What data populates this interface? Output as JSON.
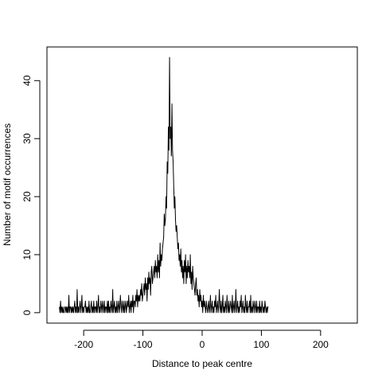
{
  "chart_data": {
    "type": "line",
    "title": "",
    "xlabel": "Distance to peak centre",
    "ylabel": "Number of motif occurrences",
    "xlim": [
      -262,
      262
    ],
    "ylim": [
      -1.8,
      45.8
    ],
    "xticks": [
      -200,
      -100,
      0,
      100,
      200
    ],
    "yticks": [
      0,
      10,
      20,
      30,
      40
    ],
    "xtick_labels": [
      "-200",
      "-100",
      "0",
      "100",
      "200"
    ],
    "ytick_labels": [
      "0",
      "10",
      "20",
      "30",
      "40"
    ],
    "grid": false,
    "legend": "none",
    "colors": {
      "line": "#000000",
      "axis": "#000000",
      "background": "#ffffff"
    },
    "series": [
      {
        "x_start": -241,
        "x_step": 1,
        "values": [
          1,
          0,
          2,
          0,
          1,
          0,
          1,
          0,
          0,
          1,
          1,
          0,
          1,
          0,
          1,
          0,
          3,
          0,
          1,
          1,
          0,
          1,
          0,
          1,
          0,
          1,
          2,
          0,
          1,
          0,
          4,
          0,
          1,
          0,
          1,
          2,
          0,
          1,
          3,
          0,
          1,
          0,
          1,
          1,
          2,
          0,
          1,
          0,
          1,
          0,
          2,
          0,
          0,
          1,
          2,
          0,
          1,
          0,
          2,
          0,
          1,
          1,
          0,
          2,
          0,
          1,
          3,
          0,
          1,
          0,
          2,
          1,
          0,
          2,
          1,
          0,
          2,
          0,
          1,
          1,
          0,
          2,
          0,
          2,
          0,
          1,
          0,
          2,
          1,
          0,
          4,
          0,
          1,
          2,
          0,
          1,
          0,
          2,
          0,
          1,
          2,
          0,
          1,
          3,
          1,
          0,
          2,
          1,
          0,
          2,
          0,
          1,
          2,
          0,
          1,
          2,
          1,
          3,
          0,
          1,
          2,
          0,
          2,
          1,
          3,
          0,
          2,
          2,
          1,
          3,
          2,
          4,
          1,
          3,
          2,
          3,
          2,
          4,
          3,
          5,
          2,
          3,
          4,
          5,
          3,
          6,
          4,
          5,
          2,
          6,
          4,
          7,
          5,
          6,
          3,
          7,
          8,
          5,
          6,
          7,
          8,
          6,
          9,
          7,
          8,
          6,
          10,
          7,
          9,
          6,
          12,
          8,
          10,
          9,
          11,
          12,
          13,
          17,
          15,
          16,
          20,
          18,
          26,
          24,
          32,
          28,
          44,
          30,
          32,
          27,
          36,
          28,
          26,
          22,
          18,
          20,
          16,
          14,
          15,
          13,
          11,
          12,
          9,
          10,
          8,
          11,
          7,
          9,
          6,
          8,
          5,
          9,
          7,
          10,
          5,
          8,
          6,
          9,
          7,
          8,
          6,
          10,
          5,
          7,
          4,
          8,
          6,
          5,
          4,
          3,
          5,
          6,
          3,
          4,
          2,
          3,
          1,
          4,
          2,
          3,
          1,
          2,
          0,
          3,
          1,
          2,
          1,
          0,
          2,
          1,
          0,
          1,
          2,
          0,
          1,
          3,
          0,
          1,
          2,
          0,
          1,
          0,
          2,
          1,
          3,
          0,
          1,
          2,
          0,
          1,
          4,
          1,
          0,
          2,
          0,
          1,
          3,
          0,
          1,
          0,
          2,
          1,
          0,
          3,
          1,
          0,
          2,
          0,
          1,
          2,
          1,
          0,
          3,
          0,
          1,
          2,
          0,
          1,
          4,
          0,
          1,
          2,
          0,
          1,
          0,
          2,
          1,
          3,
          0,
          1,
          2,
          0,
          1,
          0,
          3,
          1,
          0,
          2,
          0,
          1,
          1,
          2,
          0,
          3,
          0,
          1,
          0,
          2,
          1,
          0,
          2,
          1,
          0,
          2,
          0,
          1,
          1,
          0,
          2,
          0,
          1,
          0,
          2,
          1,
          0,
          1,
          0,
          2,
          1,
          0,
          1,
          0,
          1,
          1
        ]
      }
    ]
  }
}
